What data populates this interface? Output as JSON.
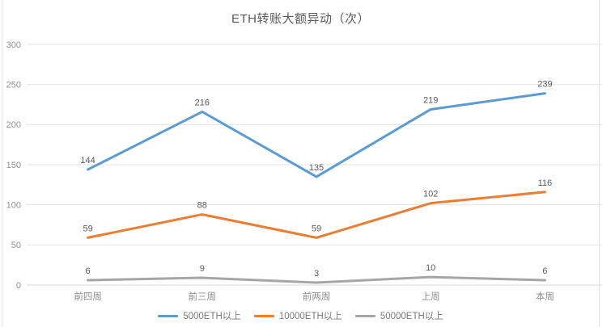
{
  "title": "ETH转账大额异动（次）",
  "colors": {
    "series_blue": "#5B9BD5",
    "series_orange": "#ED7D31",
    "series_gray": "#A6A6A6",
    "gridline": "#E6E6E6",
    "axis_line": "#D9D9D9",
    "tick_text": "#8F8F8F",
    "data_label_text": "#595959",
    "title_text": "#595959",
    "card_border": "#E4E4E4"
  },
  "chart_data": {
    "type": "line",
    "title": "ETH转账大额异动（次）",
    "categories": [
      "前四周",
      "前三周",
      "前两周",
      "上周",
      "本周"
    ],
    "series": [
      {
        "name": "5000ETH以上",
        "color": "#5B9BD5",
        "values": [
          144,
          216,
          135,
          219,
          239
        ]
      },
      {
        "name": "10000ETH以上",
        "color": "#ED7D31",
        "values": [
          59,
          88,
          59,
          102,
          116
        ]
      },
      {
        "name": "50000ETH以上",
        "color": "#A6A6A6",
        "values": [
          6,
          9,
          3,
          10,
          6
        ]
      }
    ],
    "ylim": [
      0,
      300
    ],
    "yticks": [
      0,
      50,
      100,
      150,
      200,
      250,
      300
    ],
    "grid": true,
    "data_labels": true,
    "legend_position": "bottom",
    "xlabel": "",
    "ylabel": ""
  }
}
